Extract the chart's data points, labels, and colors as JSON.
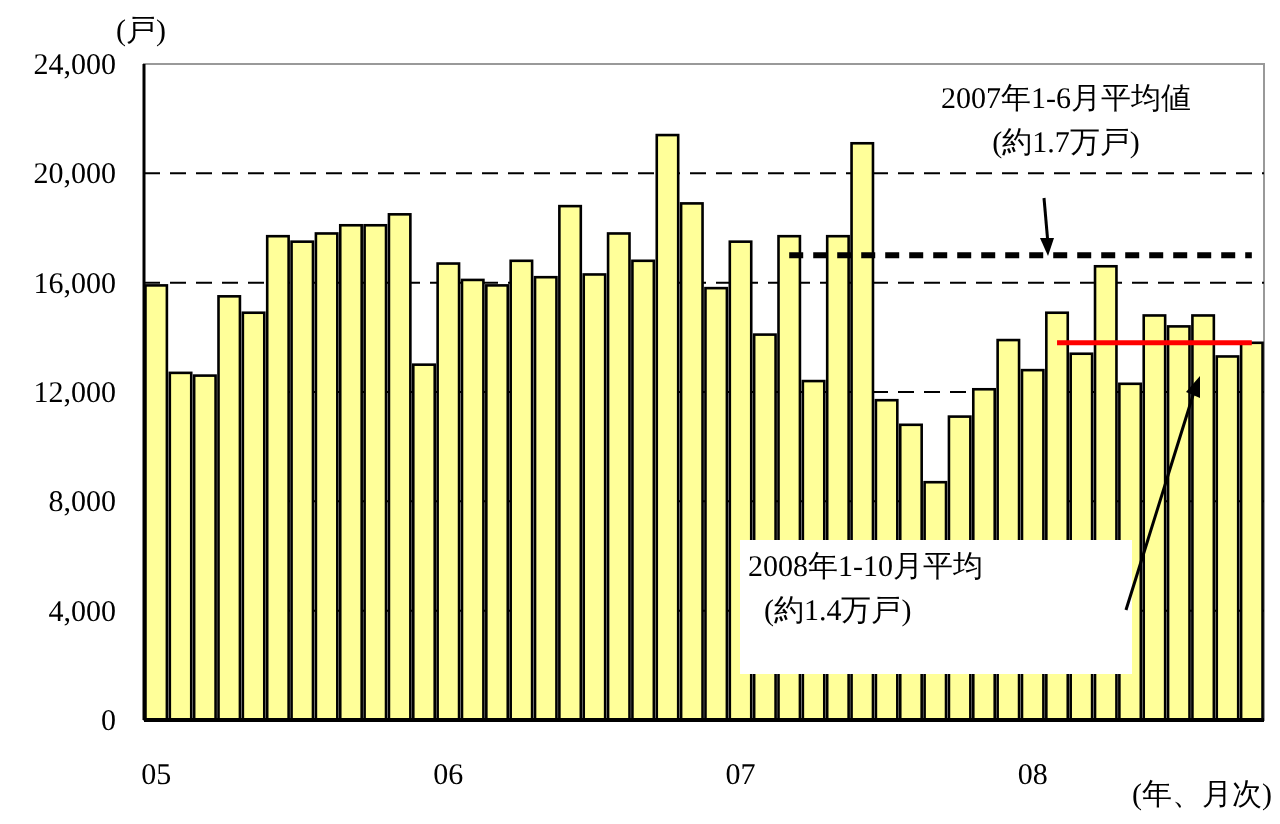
{
  "chart_data": {
    "type": "bar",
    "ylabel": "(戸)",
    "xlabel": "(年、月次)",
    "categories": [
      "05",
      null,
      null,
      null,
      null,
      null,
      null,
      null,
      null,
      null,
      null,
      null,
      "06",
      null,
      null,
      null,
      null,
      null,
      null,
      null,
      null,
      null,
      null,
      null,
      "07",
      null,
      null,
      null,
      null,
      null,
      null,
      null,
      null,
      null,
      null,
      null,
      "08",
      null,
      null,
      null,
      null,
      null,
      null,
      null,
      null,
      null
    ],
    "series": [
      {
        "color": "#ffff99",
        "values": [
          15900,
          12700,
          12600,
          15500,
          14900,
          17700,
          17500,
          17800,
          18100,
          18100,
          18500,
          13000,
          16700,
          16100,
          15900,
          16800,
          16200,
          18800,
          16300,
          17800,
          16800,
          21400,
          18900,
          15800,
          17500,
          14100,
          17700,
          12400,
          17700,
          21100,
          11700,
          10800,
          8700,
          11100,
          12100,
          13900,
          12800,
          14900,
          13400,
          16600,
          12300,
          14800,
          14400,
          14800,
          13300,
          13800
        ]
      },
      {
        "type": "line",
        "color": "#000000",
        "line_style": "dashed",
        "values": [
          null,
          null,
          null,
          null,
          null,
          null,
          null,
          null,
          null,
          null,
          null,
          null,
          null,
          null,
          null,
          null,
          null,
          null,
          null,
          null,
          null,
          null,
          null,
          null,
          null,
          null,
          17000,
          17000,
          17000,
          17000,
          17000,
          17000,
          17000,
          17000,
          17000,
          17000,
          17000,
          17000,
          17000,
          17000,
          17000,
          17000,
          17000,
          17000,
          17000,
          17000
        ]
      },
      {
        "type": "line",
        "color": "#ff0000",
        "line_style": "solid",
        "values": [
          null,
          null,
          null,
          null,
          null,
          null,
          null,
          null,
          null,
          null,
          null,
          null,
          null,
          null,
          null,
          null,
          null,
          null,
          null,
          null,
          null,
          null,
          null,
          null,
          null,
          null,
          null,
          null,
          null,
          null,
          null,
          null,
          null,
          null,
          null,
          null,
          null,
          13800,
          13800,
          13800,
          13800,
          13800,
          13800,
          13800,
          13800,
          13800
        ]
      }
    ],
    "ylim": [
      0,
      24000
    ],
    "yticks": [
      {
        "value": 0,
        "label": "0"
      },
      {
        "value": 4000,
        "label": "4,000"
      },
      {
        "value": 8000,
        "label": "8,000"
      },
      {
        "value": 12000,
        "label": "12,000"
      },
      {
        "value": 16000,
        "label": "16,000"
      },
      {
        "value": 20000,
        "label": "20,000"
      },
      {
        "value": 24000,
        "label": "24,000"
      }
    ],
    "grid": "y",
    "annotations": [
      "2007年1-6月平均値\n(約1.7万戸)",
      "2008年1-10月平均\n(約1.4万戸)"
    ]
  }
}
